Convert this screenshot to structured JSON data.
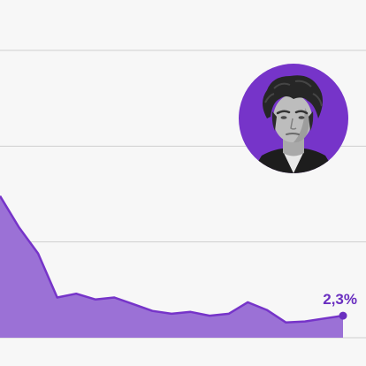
{
  "chart_data": {
    "type": "area",
    "title": "",
    "xlabel": "",
    "ylabel": "",
    "x": [
      0,
      1,
      2,
      3,
      4,
      5,
      6,
      7,
      8,
      9,
      10,
      11,
      12,
      13,
      14,
      15,
      16,
      17,
      18
    ],
    "series": [
      {
        "values": [
          14.8,
          11.5,
          8.8,
          4.2,
          4.6,
          4.0,
          4.2,
          3.5,
          2.8,
          2.5,
          2.7,
          2.3,
          2.5,
          3.7,
          2.9,
          1.6,
          1.7,
          2.0,
          2.3
        ]
      }
    ],
    "ylim": [
      0,
      30
    ],
    "xlim": [
      0,
      18
    ],
    "grid": true,
    "gridlines": [
      0,
      10,
      20,
      30
    ],
    "end_label": "2,3%"
  },
  "photo": {
    "icon": "politician-portrait",
    "ring_color": "#7634c9"
  },
  "colors": {
    "background": "#f7f7f7",
    "area_fill": "#9b71d6",
    "line": "#7634c9",
    "accent": "#6a2fc0",
    "grid": "#cfcfcf"
  }
}
